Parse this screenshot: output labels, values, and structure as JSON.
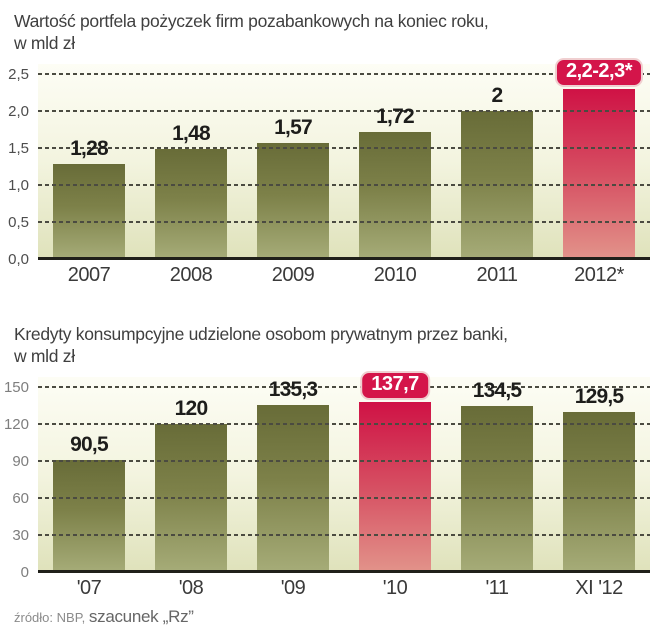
{
  "colors": {
    "bar_olive_top": "#686c38",
    "bar_olive_bottom": "#a6ac78",
    "highlight_red": "#d4154a",
    "badge_border": "#f0cfd0",
    "badge_text": "#ffffff",
    "plot_background_top": "#fdfdf5",
    "plot_background_bottom": "#dfe2bb",
    "axis_line": "#20201a"
  },
  "chart_data": [
    {
      "type": "bar",
      "title": "Wartość portfela pożyczek firm pozabankowych na koniec roku,",
      "subtitle": "w mld zł",
      "categories": [
        "2007",
        "2008",
        "2009",
        "2010",
        "2011",
        "2012*"
      ],
      "values": [
        1.28,
        1.48,
        1.57,
        1.72,
        2,
        2.3
      ],
      "value_labels": [
        "1,28",
        "1,48",
        "1,57",
        "1,72",
        "2",
        "2,2-2,3*"
      ],
      "highlight_index": 5,
      "ylim": [
        0,
        2.5
      ],
      "yticks": [
        {
          "label": "2,5",
          "value": 2.5
        },
        {
          "label": "2,0",
          "value": 2.0
        },
        {
          "label": "1,5",
          "value": 1.5
        },
        {
          "label": "1,0",
          "value": 1.0
        },
        {
          "label": "0,5",
          "value": 0.5
        },
        {
          "label": "0,0",
          "value": 0
        }
      ],
      "grid": "horizontal-dashed",
      "legend": "none"
    },
    {
      "type": "bar",
      "title": "Kredyty konsumpcyjne udzielone osobom prywatnym przez banki,",
      "subtitle": "w mld zł",
      "categories": [
        "'07",
        "'08",
        "'09",
        "'10",
        "'11",
        "XI '12"
      ],
      "values": [
        90.5,
        120,
        135.3,
        137.7,
        134.5,
        129.5
      ],
      "value_labels": [
        "90,5",
        "120",
        "135,3",
        "137,7",
        "134,5",
        "129,5"
      ],
      "highlight_index": 3,
      "ylim": [
        0,
        150
      ],
      "yticks": [
        {
          "label": "150",
          "value": 150
        },
        {
          "label": "120",
          "value": 120
        },
        {
          "label": "90",
          "value": 90
        },
        {
          "label": "60",
          "value": 60
        },
        {
          "label": "30",
          "value": 30
        },
        {
          "label": "0",
          "value": 0
        }
      ],
      "grid": "horizontal-dashed",
      "legend": "none"
    }
  ],
  "footer": {
    "source_prefix": "źródło: NBP,",
    "source_emphasis": "szacunek „Rz”"
  }
}
